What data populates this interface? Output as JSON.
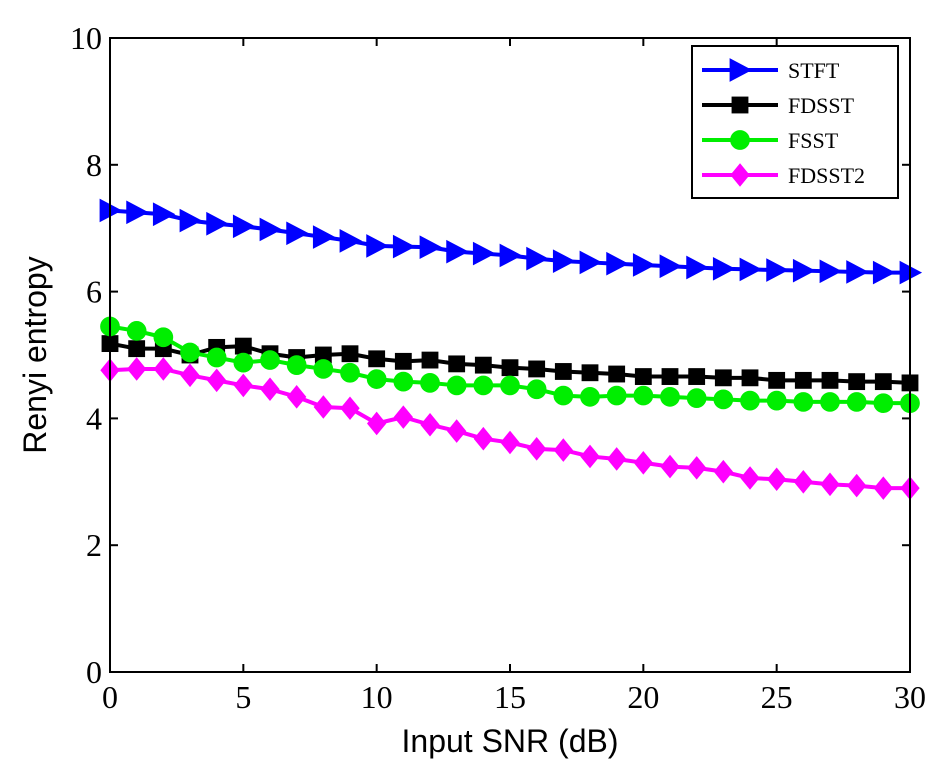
{
  "chart_data": {
    "type": "line",
    "title": "",
    "xlabel": "Input SNR (dB)",
    "ylabel": "Renyi entropy",
    "xlim": [
      0,
      30
    ],
    "ylim": [
      0,
      10
    ],
    "xticks": [
      0,
      5,
      10,
      15,
      20,
      25,
      30
    ],
    "yticks": [
      0,
      2,
      4,
      6,
      8,
      10
    ],
    "grid": false,
    "legend_position": "top-right",
    "x": [
      0,
      1,
      2,
      3,
      4,
      5,
      6,
      7,
      8,
      9,
      10,
      11,
      12,
      13,
      14,
      15,
      16,
      17,
      18,
      19,
      20,
      21,
      22,
      23,
      24,
      25,
      26,
      27,
      28,
      29,
      30
    ],
    "series": [
      {
        "name": "STFT",
        "color": "#0000ff",
        "marker": "triangle-right",
        "values": [
          7.28,
          7.25,
          7.22,
          7.12,
          7.07,
          7.03,
          6.98,
          6.92,
          6.86,
          6.8,
          6.72,
          6.71,
          6.7,
          6.63,
          6.6,
          6.57,
          6.52,
          6.48,
          6.46,
          6.44,
          6.42,
          6.4,
          6.38,
          6.36,
          6.35,
          6.34,
          6.33,
          6.32,
          6.31,
          6.3,
          6.3
        ]
      },
      {
        "name": "FDSST",
        "color": "#000000",
        "marker": "square",
        "values": [
          5.18,
          5.1,
          5.1,
          5.0,
          5.12,
          5.14,
          5.02,
          4.96,
          5.0,
          5.02,
          4.94,
          4.9,
          4.92,
          4.86,
          4.84,
          4.8,
          4.78,
          4.74,
          4.72,
          4.7,
          4.66,
          4.66,
          4.66,
          4.64,
          4.64,
          4.6,
          4.6,
          4.6,
          4.58,
          4.58,
          4.56
        ]
      },
      {
        "name": "FSST",
        "color": "#00ee00",
        "marker": "circle",
        "values": [
          5.45,
          5.38,
          5.28,
          5.04,
          4.96,
          4.88,
          4.92,
          4.84,
          4.78,
          4.72,
          4.62,
          4.58,
          4.56,
          4.52,
          4.52,
          4.52,
          4.46,
          4.36,
          4.34,
          4.36,
          4.36,
          4.34,
          4.32,
          4.3,
          4.28,
          4.28,
          4.26,
          4.26,
          4.26,
          4.24,
          4.24
        ]
      },
      {
        "name": "FDSST2",
        "color": "#ff00ff",
        "marker": "diamond",
        "values": [
          4.76,
          4.78,
          4.78,
          4.68,
          4.6,
          4.52,
          4.46,
          4.34,
          4.18,
          4.16,
          3.92,
          4.02,
          3.9,
          3.8,
          3.68,
          3.62,
          3.52,
          3.5,
          3.4,
          3.36,
          3.3,
          3.24,
          3.22,
          3.16,
          3.06,
          3.04,
          3.0,
          2.96,
          2.94,
          2.9,
          2.9
        ]
      }
    ]
  }
}
